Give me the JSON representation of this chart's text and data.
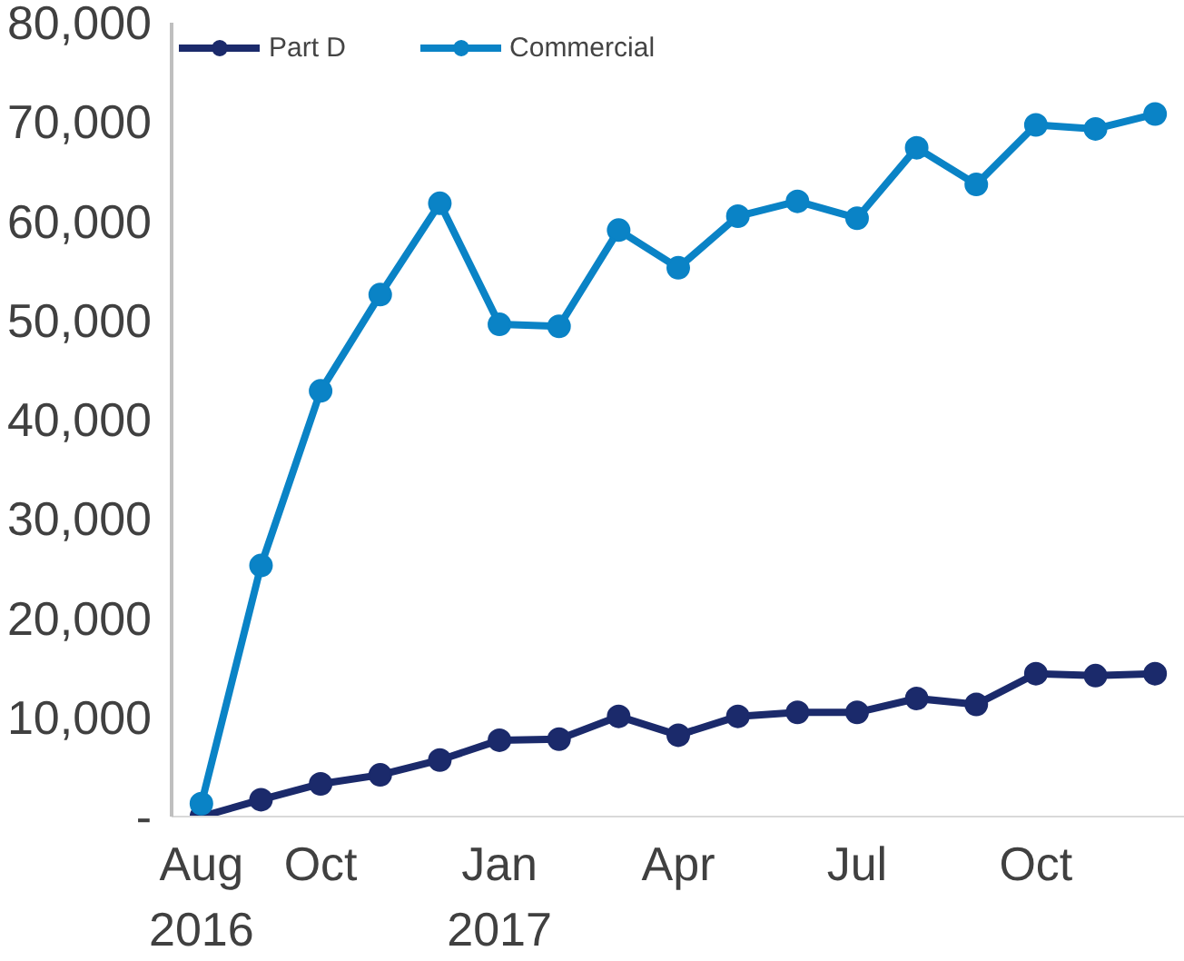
{
  "chart_data": {
    "type": "line",
    "x": [
      "2016-08",
      "2016-09",
      "2016-10",
      "2016-11",
      "2016-12",
      "2017-01",
      "2017-02",
      "2017-03",
      "2017-04",
      "2017-05",
      "2017-06",
      "2017-07",
      "2017-08",
      "2017-09",
      "2017-10",
      "2017-11",
      "2017-12"
    ],
    "series": [
      {
        "name": "Part D",
        "color": "#1b2a6b",
        "values": [
          0,
          1700,
          3300,
          4200,
          5700,
          7700,
          7800,
          10100,
          8200,
          10100,
          10500,
          10500,
          11900,
          11300,
          14400,
          14200,
          14400
        ]
      },
      {
        "name": "Commercial",
        "color": "#0a83c6",
        "values": [
          1300,
          25300,
          42900,
          52600,
          61800,
          49600,
          49400,
          59100,
          55300,
          60500,
          62000,
          60300,
          67400,
          63700,
          69700,
          69300,
          70800
        ]
      }
    ],
    "xlim": [
      "2016-07-16",
      "2017-12-16"
    ],
    "xticks": [
      {
        "value": "2016-08",
        "label": "Aug\n2016"
      },
      {
        "value": "2016-10",
        "label": "Oct"
      },
      {
        "value": "2017-01",
        "label": "Jan\n2017"
      },
      {
        "value": "2017-04",
        "label": "Apr"
      },
      {
        "value": "2017-07",
        "label": "Jul"
      },
      {
        "value": "2017-10",
        "label": "Oct"
      }
    ],
    "ylim": [
      0,
      80000
    ],
    "yticks": [
      {
        "value": 0,
        "label": "-"
      },
      {
        "value": 10000,
        "label": "10,000"
      },
      {
        "value": 20000,
        "label": "20,000"
      },
      {
        "value": 30000,
        "label": "30,000"
      },
      {
        "value": 40000,
        "label": "40,000"
      },
      {
        "value": 50000,
        "label": "50,000"
      },
      {
        "value": 60000,
        "label": "60,000"
      },
      {
        "value": 70000,
        "label": "70,000"
      },
      {
        "value": 80000,
        "label": "80,000"
      }
    ],
    "grid": false,
    "legend": "top left",
    "marker": "circle",
    "line_style": "solid"
  }
}
